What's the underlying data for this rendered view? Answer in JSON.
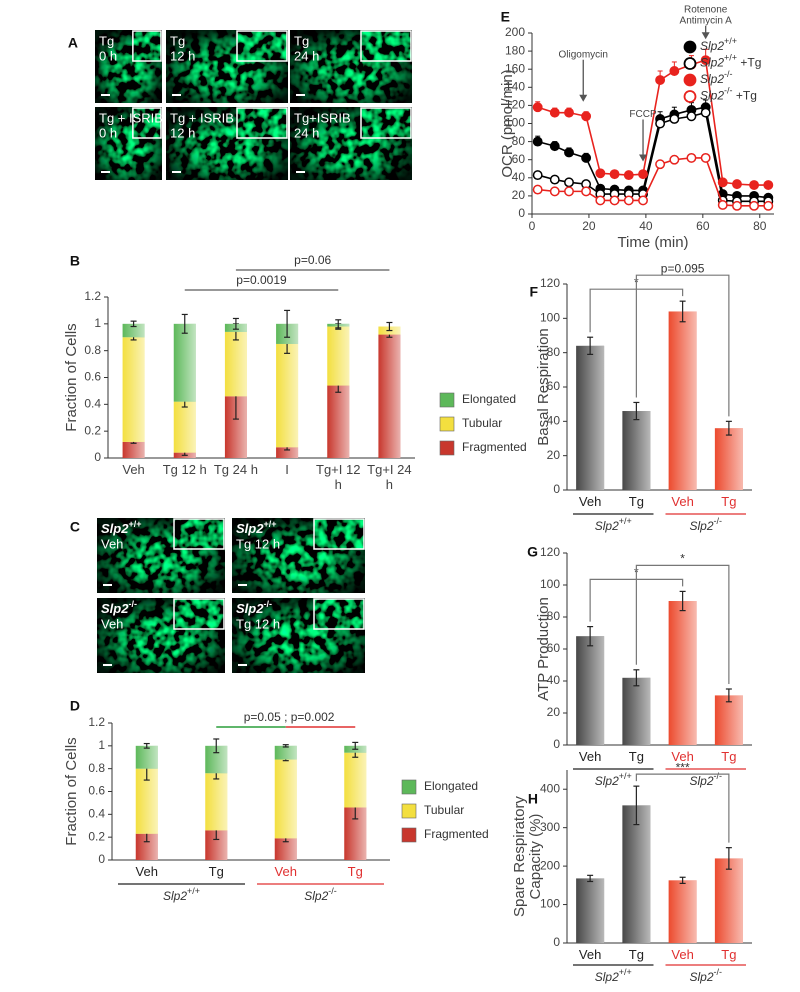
{
  "micrographs": [
    {
      "panel": "A",
      "labels": [
        [
          "Tg",
          "0 h"
        ],
        [
          "Tg",
          "12 h"
        ],
        [
          "Tg",
          "24 h"
        ],
        [
          "Tg + ISRIB",
          "0 h"
        ],
        [
          "Tg + ISRIB",
          "12 h"
        ],
        [
          "Tg+ISRIB",
          "24 h"
        ]
      ]
    },
    {
      "panel": "C",
      "labels": [
        [
          "Slp2+/+",
          "Veh"
        ],
        [
          "Slp2+/+",
          "Tg 12 h"
        ],
        [
          "Slp2-/-",
          "Veh"
        ],
        [
          "Slp2-/-",
          "Tg 12 h"
        ]
      ]
    }
  ],
  "chart_data": [
    {
      "panel": "B",
      "type": "stacked_bar",
      "ylabel": "Fraction of Cells",
      "categories": [
        "Veh",
        "Tg 12 h",
        "Tg 24 h",
        "I",
        "Tg+I 12 h",
        "Tg+I 24 h"
      ],
      "series": [
        {
          "name": "Fragmented",
          "color": "#c8372d",
          "values": [
            0.12,
            0.04,
            0.46,
            0.08,
            0.54,
            0.92
          ],
          "errors": [
            0.01,
            0.02,
            0.17,
            0.02,
            0.05,
            0.02
          ]
        },
        {
          "name": "Tubular",
          "color": "#f3df3f",
          "values": [
            0.78,
            0.38,
            0.48,
            0.77,
            0.44,
            0.06
          ],
          "errors": [
            0.02,
            0.04,
            0.06,
            0.07,
            0.02,
            0.03
          ]
        },
        {
          "name": "Elongated",
          "color": "#5db85a",
          "values": [
            0.1,
            0.58,
            0.06,
            0.15,
            0.02,
            0
          ],
          "errors": [
            0.02,
            0.07,
            0.04,
            0.1,
            0.03,
            null
          ]
        }
      ],
      "ylim": [
        0,
        1.2
      ],
      "yticks": [
        0,
        0.2,
        0.4,
        0.6,
        0.8,
        1,
        1.2
      ],
      "legend": "right",
      "annotations": [
        {
          "text": "p=0.0019",
          "color": "#e03030",
          "between": [
            1,
            4
          ]
        },
        {
          "text": "p=0.06",
          "color": "#e03030",
          "between": [
            2,
            5
          ]
        }
      ]
    },
    {
      "panel": "D",
      "type": "stacked_bar",
      "ylabel": "Fraction of Cells",
      "categories": [
        "Veh",
        "Tg",
        "Veh",
        "Tg"
      ],
      "category_colors": [
        "#222222",
        "#222222",
        "#e03030",
        "#e03030"
      ],
      "groups": [
        {
          "name": "Slp2+/+",
          "color": "#222222"
        },
        {
          "name": "Slp2-/-",
          "color": "#e03030"
        }
      ],
      "series": [
        {
          "name": "Fragmented",
          "color": "#c8372d",
          "values": [
            0.23,
            0.26,
            0.19,
            0.46
          ],
          "errors": [
            0.07,
            0.08,
            0.03,
            0.1
          ]
        },
        {
          "name": "Tubular",
          "color": "#f3df3f",
          "values": [
            0.57,
            0.5,
            0.69,
            0.48
          ],
          "errors": [
            0.1,
            0.05,
            0.01,
            0.04
          ]
        },
        {
          "name": "Elongated",
          "color": "#5db85a",
          "values": [
            0.2,
            0.24,
            0.12,
            0.06
          ],
          "errors": [
            0.02,
            0.06,
            0.01,
            0.03
          ]
        }
      ],
      "ylim": [
        0,
        1.2
      ],
      "yticks": [
        0,
        0.2,
        0.4,
        0.6,
        0.8,
        1,
        1.2
      ],
      "legend": "right",
      "annotations": [
        {
          "between": [
            1,
            3
          ],
          "parts": [
            {
              "text": "p=0.05",
              "color": "#2a9d3a"
            },
            {
              "text": ";",
              "color": "#222222"
            },
            {
              "text": "p=0.002",
              "color": "#e03030"
            }
          ]
        }
      ]
    },
    {
      "panel": "E",
      "type": "line",
      "ylabel": "OCR (pmol/min)",
      "xlabel": "Time (min)",
      "x": [
        2,
        8,
        13,
        19,
        24,
        29,
        34,
        39,
        45,
        50,
        56,
        61,
        67,
        72,
        78,
        83
      ],
      "series": [
        {
          "name": "Slp2+/+",
          "color": "#000000",
          "marker": "filled",
          "values": [
            80,
            75,
            68,
            62,
            28,
            27,
            26,
            26,
            105,
            110,
            115,
            118,
            22,
            20,
            20,
            18
          ],
          "errors": [
            6,
            5,
            5,
            5,
            3,
            3,
            3,
            3,
            8,
            8,
            8,
            8,
            3,
            3,
            3,
            3
          ]
        },
        {
          "name": "Slp2+/+ +Tg",
          "color": "#000000",
          "marker": "open",
          "values": [
            43,
            38,
            35,
            33,
            22,
            22,
            22,
            22,
            100,
            105,
            108,
            112,
            15,
            14,
            14,
            14
          ],
          "errors": [
            3,
            3,
            3,
            3,
            2,
            2,
            2,
            2,
            6,
            6,
            6,
            6,
            2,
            2,
            2,
            2
          ]
        },
        {
          "name": "Slp2-/-",
          "color": "#e8231e",
          "marker": "filled",
          "values": [
            118,
            112,
            112,
            108,
            45,
            44,
            43,
            44,
            148,
            158,
            165,
            170,
            35,
            33,
            32,
            32
          ],
          "errors": [
            6,
            5,
            5,
            5,
            3,
            3,
            3,
            3,
            10,
            10,
            10,
            12,
            3,
            3,
            3,
            3
          ]
        },
        {
          "name": "Slp2-/- +Tg",
          "color": "#e8231e",
          "marker": "open",
          "values": [
            27,
            25,
            25,
            25,
            15,
            15,
            15,
            15,
            55,
            60,
            62,
            62,
            10,
            9,
            9,
            9
          ],
          "errors": [
            2,
            2,
            2,
            2,
            2,
            2,
            2,
            2,
            4,
            4,
            4,
            4,
            2,
            2,
            2,
            2
          ]
        }
      ],
      "xlim": [
        0,
        85
      ],
      "xticks": [
        0,
        20,
        40,
        60,
        80
      ],
      "ylim": [
        0,
        200
      ],
      "yticks": [
        0,
        20,
        40,
        60,
        80,
        100,
        120,
        140,
        160,
        180,
        200
      ],
      "legend": "upper right",
      "annotations": [
        {
          "text": [
            "Oligomycin"
          ],
          "x": 18
        },
        {
          "text": [
            "FCCP"
          ],
          "x": 39
        },
        {
          "text": [
            "Rotenone",
            "Antimycin A"
          ],
          "x": 61
        }
      ]
    },
    {
      "panel": "F",
      "type": "bar",
      "ylabel": "Basal Respiration",
      "categories": [
        "Veh",
        "Tg",
        "Veh",
        "Tg"
      ],
      "category_colors": [
        "#222222",
        "#222222",
        "#e03030",
        "#e03030"
      ],
      "colors": [
        "#474747",
        "#474747",
        "#ec4a2e",
        "#ec4a2e"
      ],
      "values": [
        84,
        46,
        104,
        36
      ],
      "errors": [
        5,
        5,
        6,
        4
      ],
      "groups": [
        {
          "name": "Slp2+/+",
          "color": "#222222"
        },
        {
          "name": "Slp2-/-",
          "color": "#e03030"
        }
      ],
      "ylim": [
        0,
        120
      ],
      "yticks": [
        0,
        20,
        40,
        60,
        80,
        100,
        120
      ],
      "brackets": [
        {
          "text": "*",
          "between": [
            0,
            2
          ]
        },
        {
          "text": "p=0.095",
          "between": [
            1,
            3
          ]
        }
      ]
    },
    {
      "panel": "G",
      "type": "bar",
      "ylabel": "ATP Production",
      "categories": [
        "Veh",
        "Tg",
        "Veh",
        "Tg"
      ],
      "category_colors": [
        "#222222",
        "#222222",
        "#e03030",
        "#e03030"
      ],
      "colors": [
        "#474747",
        "#474747",
        "#ec4a2e",
        "#ec4a2e"
      ],
      "values": [
        68,
        42,
        90,
        31
      ],
      "errors": [
        6,
        5,
        6,
        4
      ],
      "groups": [
        {
          "name": "Slp2+/+",
          "color": "#222222"
        },
        {
          "name": "Slp2-/-",
          "color": "#e03030"
        }
      ],
      "ylim": [
        0,
        120
      ],
      "yticks": [
        0,
        20,
        40,
        60,
        80,
        100,
        120
      ],
      "brackets": [
        {
          "text": "*",
          "between": [
            0,
            2
          ]
        },
        {
          "text": "*",
          "between": [
            1,
            3
          ]
        }
      ]
    },
    {
      "panel": "H",
      "type": "bar",
      "ylabel": [
        "Spare Respiratory",
        "Capacity (%)"
      ],
      "categories": [
        "Veh",
        "Tg",
        "Veh",
        "Tg"
      ],
      "category_colors": [
        "#222222",
        "#222222",
        "#e03030",
        "#e03030"
      ],
      "colors": [
        "#474747",
        "#474747",
        "#ec4a2e",
        "#ec4a2e"
      ],
      "values": [
        168,
        358,
        163,
        220
      ],
      "errors": [
        8,
        50,
        8,
        28
      ],
      "groups": [
        {
          "name": "Slp2+/+",
          "color": "#222222"
        },
        {
          "name": "Slp2-/-",
          "color": "#e03030"
        }
      ],
      "ylim": [
        0,
        450
      ],
      "yticks": [
        0,
        100,
        200,
        300,
        400
      ],
      "brackets": [
        {
          "text": "***",
          "between": [
            1,
            3
          ]
        }
      ]
    }
  ]
}
